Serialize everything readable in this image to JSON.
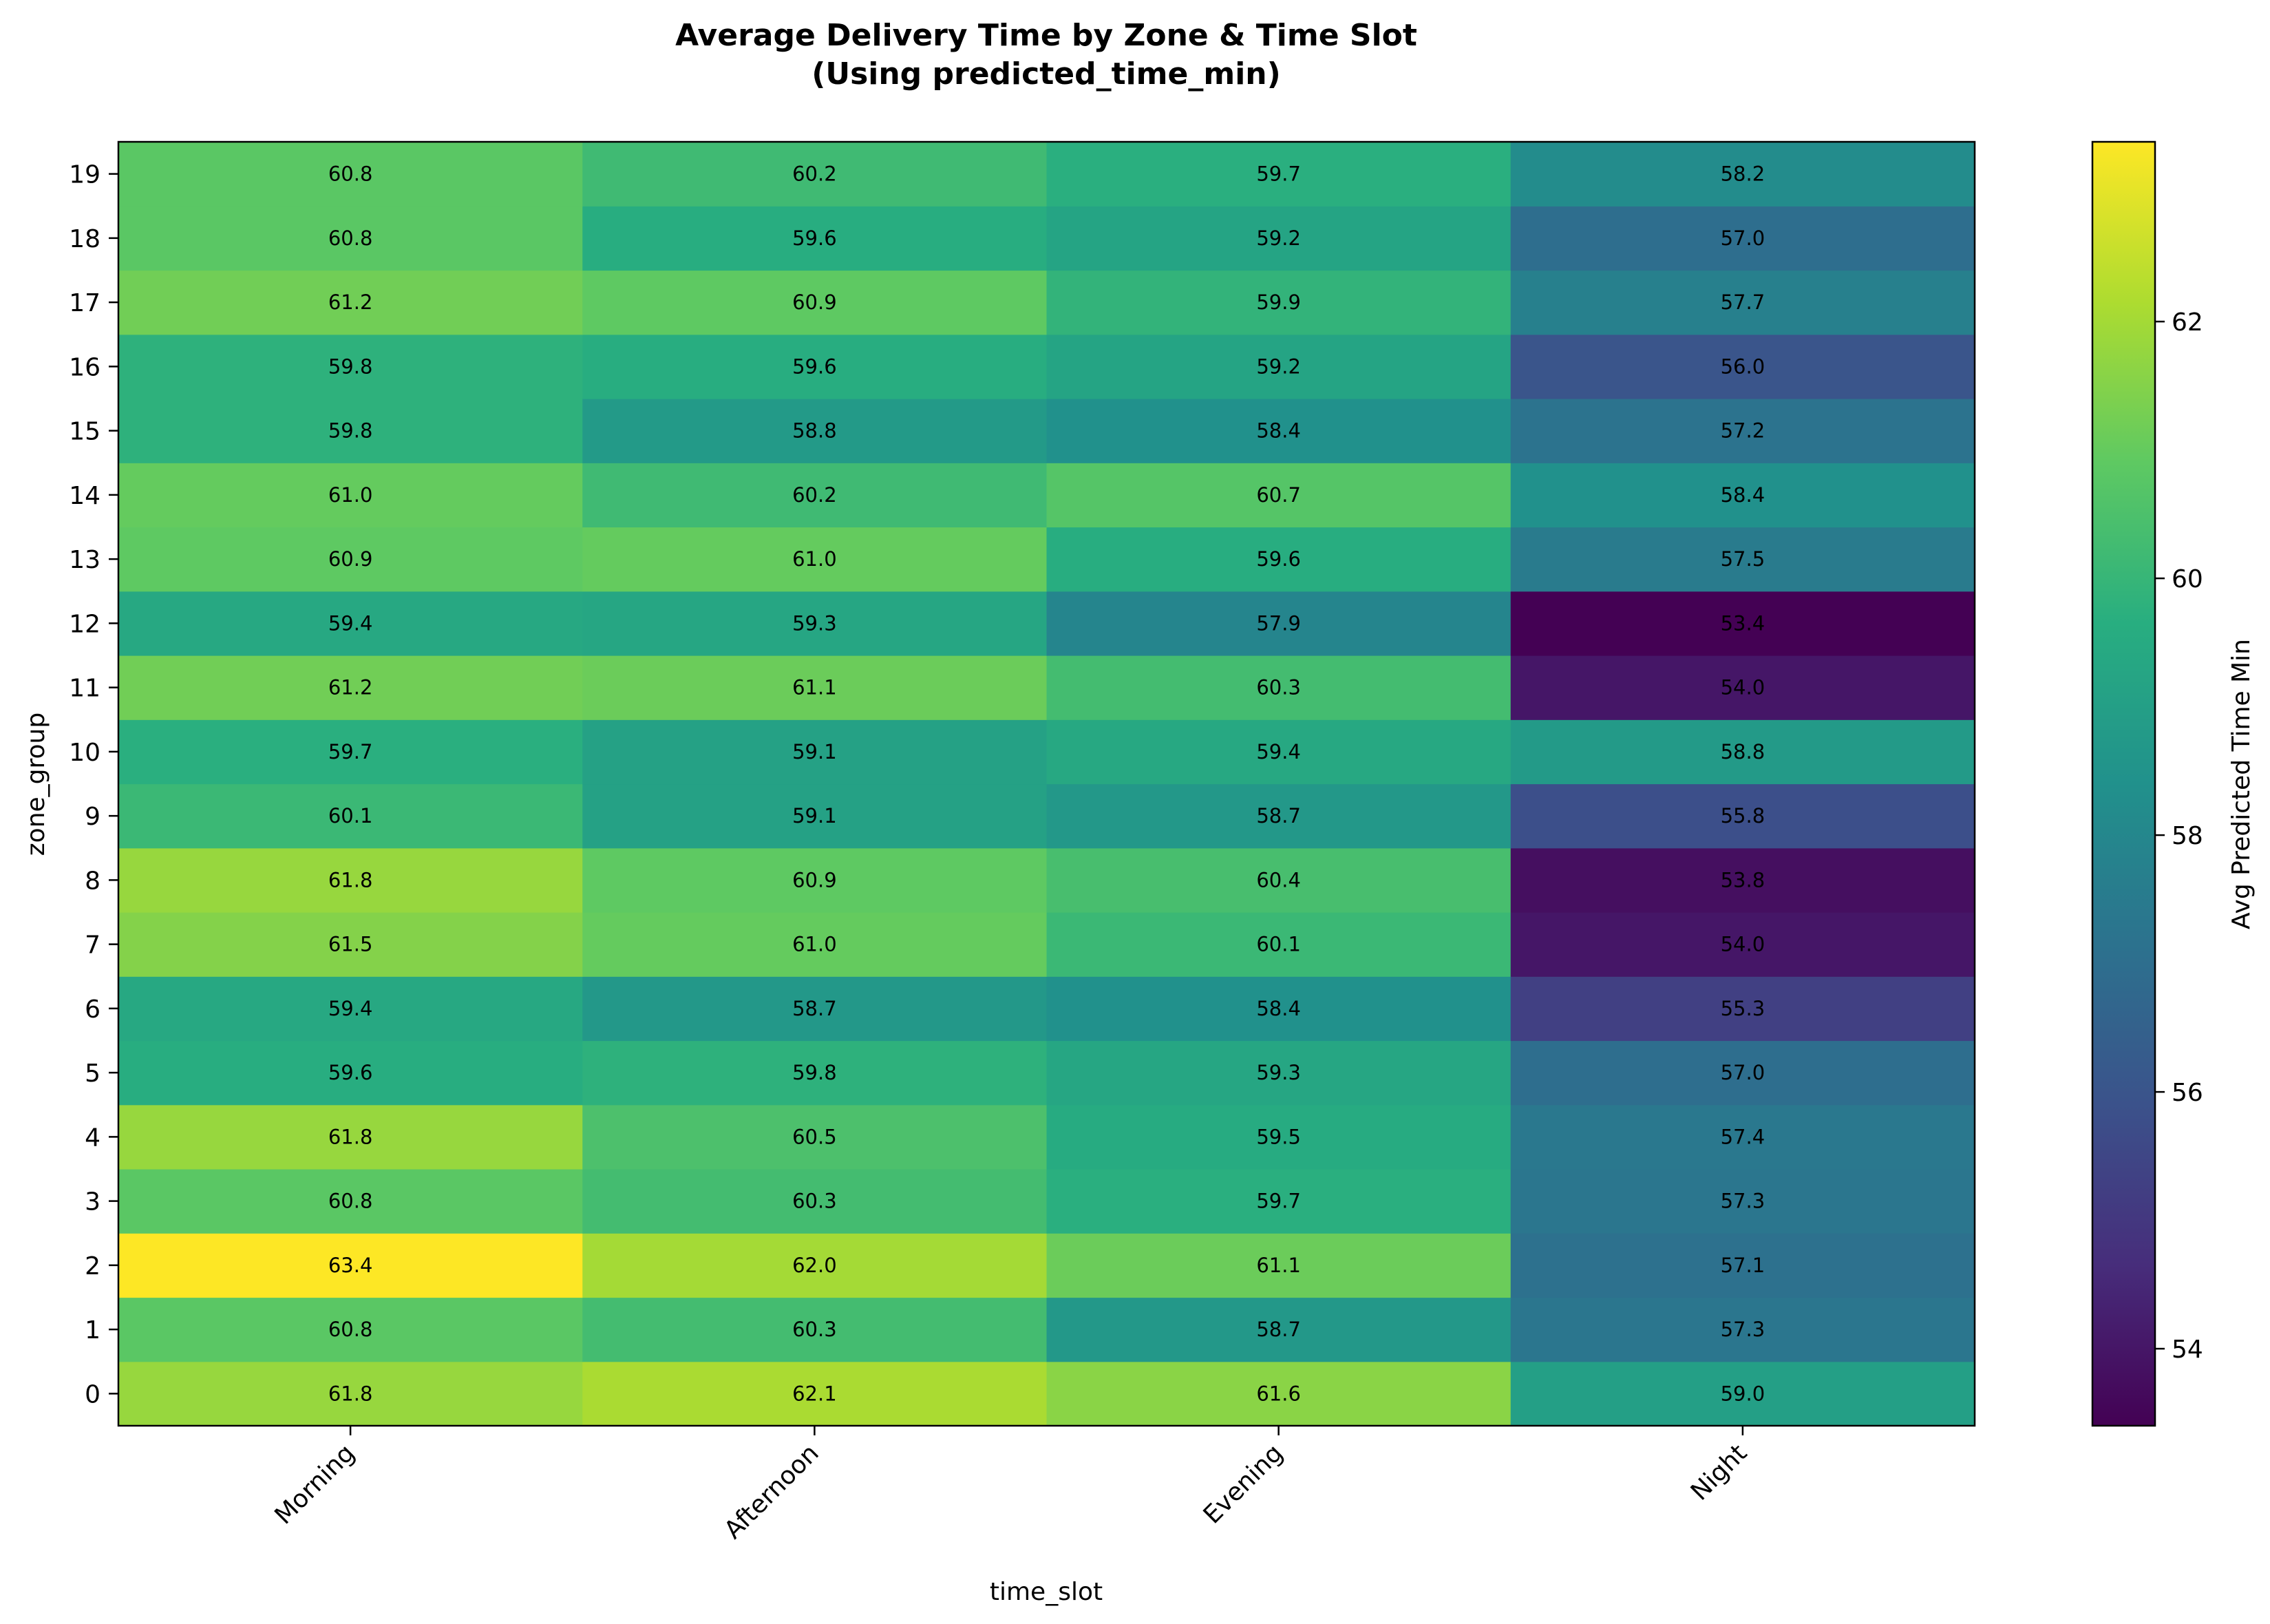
{
  "chart_data": {
    "type": "heatmap",
    "title": [
      "Average Delivery Time by Zone & Time Slot",
      "(Using predicted_time_min)"
    ],
    "xlabel": "time_slot",
    "ylabel": "zone_group",
    "x_categories": [
      "Morning",
      "Afternoon",
      "Evening",
      "Night"
    ],
    "y_categories": [
      "0",
      "1",
      "2",
      "3",
      "4",
      "5",
      "6",
      "7",
      "8",
      "9",
      "10",
      "11",
      "12",
      "13",
      "14",
      "15",
      "16",
      "17",
      "18",
      "19"
    ],
    "values": [
      [
        61.8,
        62.1,
        61.6,
        59.0
      ],
      [
        60.8,
        60.3,
        58.7,
        57.3
      ],
      [
        63.4,
        62.0,
        61.1,
        57.1
      ],
      [
        60.8,
        60.3,
        59.7,
        57.3
      ],
      [
        61.8,
        60.5,
        59.5,
        57.4
      ],
      [
        59.6,
        59.8,
        59.3,
        57.0
      ],
      [
        59.4,
        58.7,
        58.4,
        55.3
      ],
      [
        61.5,
        61.0,
        60.1,
        54.0
      ],
      [
        61.8,
        60.9,
        60.4,
        53.8
      ],
      [
        60.1,
        59.1,
        58.7,
        55.8
      ],
      [
        59.7,
        59.1,
        59.4,
        58.8
      ],
      [
        61.2,
        61.1,
        60.3,
        54.0
      ],
      [
        59.4,
        59.3,
        57.9,
        53.4
      ],
      [
        60.9,
        61.0,
        59.6,
        57.5
      ],
      [
        61.0,
        60.2,
        60.7,
        58.4
      ],
      [
        59.8,
        58.8,
        58.4,
        57.2
      ],
      [
        59.8,
        59.6,
        59.2,
        56.0
      ],
      [
        61.2,
        60.9,
        59.9,
        57.7
      ],
      [
        60.8,
        59.6,
        59.2,
        57.0
      ],
      [
        60.8,
        60.2,
        59.7,
        58.2
      ]
    ],
    "colormap": "viridis",
    "color_range": [
      53.4,
      63.4
    ],
    "colorbar": {
      "label": "Avg Predicted Time Min",
      "ticks": [
        54,
        56,
        58,
        60,
        62
      ]
    }
  }
}
